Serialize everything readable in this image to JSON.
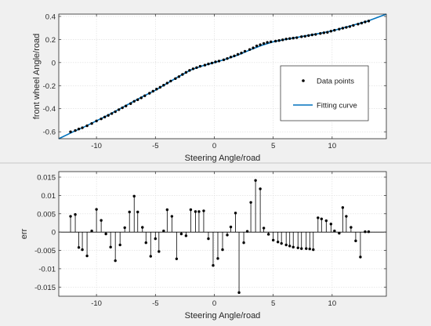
{
  "colors": {
    "figure_background": "#f0f0f0",
    "axes_background": "#ffffff",
    "axis_line": "#262626",
    "grid": "#dcdcdc",
    "fitting_curve": "#0072bd",
    "data_points": "#000000"
  },
  "chart_data": [
    {
      "type": "scatter",
      "xlabel": "Steering Angle/road",
      "ylabel": "front wheel Angle/road",
      "xlim": [
        -13.2,
        14.6
      ],
      "ylim": [
        -0.66,
        0.42
      ],
      "xticks": [
        -10,
        -5,
        0,
        5,
        10
      ],
      "yticks": [
        -0.6,
        -0.4,
        -0.2,
        0,
        0.2,
        0.4
      ],
      "xtick_labels": [
        "-10",
        "-5",
        "0",
        "5",
        "10"
      ],
      "ytick_labels": [
        "-0.6",
        "-0.4",
        "-0.2",
        "0",
        "0.2",
        "0.4"
      ],
      "grid": true,
      "legend": {
        "position": "right",
        "entries": [
          "Data points",
          "Fitting curve"
        ]
      },
      "series": [
        {
          "name": "Data points",
          "marker": "dot",
          "x": [
            -12.2,
            -11.8,
            -11.5,
            -11.2,
            -10.8,
            -10.4,
            -10.0,
            -9.6,
            -9.3,
            -9.0,
            -8.7,
            -8.4,
            -8.1,
            -7.8,
            -7.5,
            -7.1,
            -6.8,
            -6.5,
            -6.2,
            -5.9,
            -5.5,
            -5.2,
            -4.9,
            -4.6,
            -4.3,
            -4.0,
            -3.7,
            -3.3,
            -3.0,
            -2.7,
            -2.4,
            -2.1,
            -1.8,
            -1.5,
            -1.2,
            -0.8,
            -0.5,
            -0.2,
            0.1,
            0.4,
            0.8,
            1.1,
            1.4,
            1.7,
            2.0,
            2.3,
            2.6,
            3.0,
            3.3,
            3.6,
            3.9,
            4.2,
            4.5,
            4.8,
            5.2,
            5.5,
            5.8,
            6.1,
            6.4,
            6.7,
            7.0,
            7.4,
            7.7,
            8.0,
            8.3,
            8.6,
            9.0,
            9.3,
            9.6,
            9.9,
            10.2,
            10.6,
            10.9,
            11.2,
            11.5,
            11.8,
            12.2,
            12.5,
            12.8,
            13.1
          ],
          "y": [
            -0.6,
            -0.589,
            -0.576,
            -0.565,
            -0.548,
            -0.528,
            -0.506,
            -0.488,
            -0.472,
            -0.458,
            -0.442,
            -0.426,
            -0.408,
            -0.392,
            -0.376,
            -0.356,
            -0.336,
            -0.322,
            -0.306,
            -0.288,
            -0.266,
            -0.248,
            -0.23,
            -0.214,
            -0.196,
            -0.178,
            -0.16,
            -0.139,
            -0.122,
            -0.103,
            -0.085,
            -0.068,
            -0.054,
            -0.044,
            -0.032,
            -0.022,
            -0.012,
            -0.004,
            0.006,
            0.013,
            0.024,
            0.035,
            0.048,
            0.058,
            0.071,
            0.083,
            0.098,
            0.113,
            0.127,
            0.144,
            0.155,
            0.166,
            0.175,
            0.18,
            0.186,
            0.191,
            0.197,
            0.204,
            0.208,
            0.212,
            0.216,
            0.224,
            0.228,
            0.234,
            0.24,
            0.244,
            0.252,
            0.258,
            0.262,
            0.272,
            0.28,
            0.29,
            0.298,
            0.305,
            0.312,
            0.322,
            0.333,
            0.342,
            0.352,
            0.36
          ]
        },
        {
          "name": "Fitting curve",
          "type": "line",
          "x": [
            -13.2,
            -12.0,
            -11.0,
            -10.0,
            -9.0,
            -8.0,
            -7.0,
            -6.0,
            -5.0,
            -4.0,
            -3.0,
            -2.0,
            -1.0,
            0.0,
            1.0,
            2.0,
            3.0,
            4.0,
            5.0,
            6.0,
            7.0,
            8.0,
            9.0,
            10.0,
            11.0,
            12.0,
            13.0,
            14.6
          ],
          "y": [
            -0.66,
            -0.601,
            -0.556,
            -0.505,
            -0.455,
            -0.4,
            -0.345,
            -0.29,
            -0.24,
            -0.18,
            -0.12,
            -0.064,
            -0.028,
            0.0,
            0.03,
            0.065,
            0.108,
            0.148,
            0.18,
            0.2,
            0.218,
            0.236,
            0.254,
            0.275,
            0.302,
            0.331,
            0.359,
            0.42
          ]
        }
      ]
    },
    {
      "type": "stem",
      "xlabel": "Steering Angle/road",
      "ylabel": "err",
      "xlim": [
        -13.2,
        14.6
      ],
      "ylim": [
        -0.0175,
        0.0165
      ],
      "xticks": [
        -10,
        -5,
        0,
        5,
        10
      ],
      "yticks": [
        -0.015,
        -0.01,
        -0.005,
        0,
        0.005,
        0.01,
        0.015
      ],
      "xtick_labels": [
        "-10",
        "-5",
        "0",
        "5",
        "10"
      ],
      "ytick_labels": [
        "-0.015",
        "-0.01",
        "-0.005",
        "0",
        "0.005",
        "0.01",
        "0.015"
      ],
      "grid": true,
      "series": [
        {
          "name": "err",
          "x": [
            -12.2,
            -11.8,
            -11.5,
            -11.2,
            -10.8,
            -10.4,
            -10.0,
            -9.6,
            -9.2,
            -8.8,
            -8.4,
            -8.0,
            -7.6,
            -7.2,
            -6.8,
            -6.5,
            -6.1,
            -5.8,
            -5.4,
            -5.0,
            -4.7,
            -4.3,
            -4.0,
            -3.6,
            -3.2,
            -2.8,
            -2.4,
            -2.0,
            -1.6,
            -1.3,
            -0.9,
            -0.5,
            -0.1,
            0.3,
            0.7,
            1.1,
            1.4,
            1.8,
            2.1,
            2.5,
            2.8,
            3.1,
            3.5,
            3.9,
            4.2,
            4.6,
            5.0,
            5.4,
            5.7,
            6.1,
            6.4,
            6.7,
            7.1,
            7.4,
            7.8,
            8.1,
            8.4,
            8.8,
            9.1,
            9.5,
            9.9,
            10.2,
            10.6,
            10.9,
            11.2,
            11.6,
            12.0,
            12.4,
            12.8,
            13.1
          ],
          "y": [
            0.0043,
            0.0048,
            -0.0042,
            -0.0048,
            -0.0065,
            0.0003,
            0.0062,
            0.0032,
            -0.0005,
            -0.0041,
            -0.0078,
            -0.0035,
            0.0012,
            0.0055,
            0.0098,
            0.0055,
            0.0013,
            -0.0029,
            -0.0066,
            -0.0018,
            -0.0053,
            0.0003,
            0.0061,
            0.0043,
            -0.0073,
            -0.0005,
            -0.001,
            0.0061,
            0.0056,
            0.0056,
            0.0058,
            -0.0018,
            -0.0091,
            -0.0072,
            -0.0048,
            -0.0008,
            0.0014,
            0.0052,
            -0.0165,
            -0.0029,
            0.0002,
            0.0081,
            0.0141,
            0.0118,
            0.0011,
            -0.0006,
            -0.0022,
            -0.0027,
            -0.0031,
            -0.0035,
            -0.0038,
            -0.0041,
            -0.0043,
            -0.0045,
            -0.0045,
            -0.0046,
            -0.0048,
            0.0039,
            0.0036,
            0.0031,
            0.0022,
            0.0003,
            -0.0003,
            0.0067,
            0.0043,
            0.0013,
            -0.0024,
            -0.0068,
            0.0001,
            0.0001
          ]
        }
      ]
    }
  ]
}
